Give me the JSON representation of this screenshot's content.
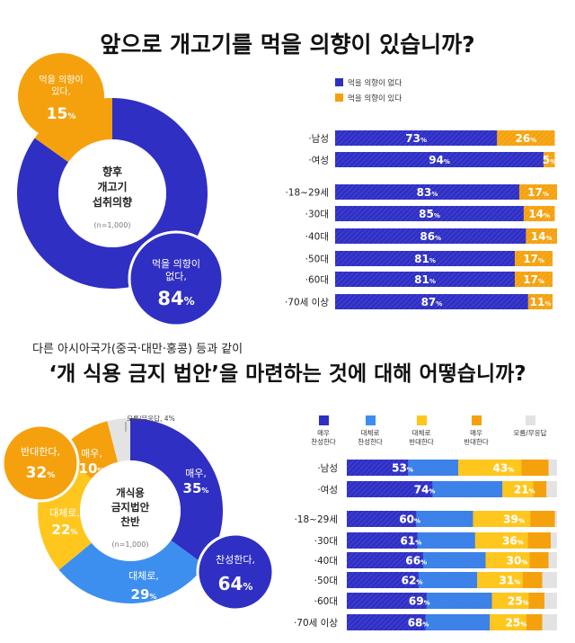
{
  "section1": {
    "title": "앞으로 개고기를 먹을 의향이 있습니까?",
    "donut": {
      "center_lines": [
        "향후",
        "개고기",
        "섭취의향"
      ],
      "center_note": "(n=1,000)",
      "callout_yes": {
        "lines": [
          "먹을 의향이",
          "있다,"
        ],
        "pct": "15%"
      },
      "callout_no": {
        "lines": [
          "먹을 의향이",
          "없다,"
        ],
        "pct": "84%"
      }
    },
    "legend": [
      "먹을 의향이 없다",
      "먹을 의향이 있다"
    ]
  },
  "section2": {
    "subtitle": "다른 아시아국가(중국·대만·홍콩) 등과 같이",
    "title": "‘개 식용 금지 법안’을 마련하는 것에 대해 어떻습니까?",
    "donut": {
      "center_lines": [
        "개식용",
        "금지법안",
        "찬반"
      ],
      "center_note": "(n=1,000)",
      "seg_labels": [
        {
          "lines": [
            "매우,"
          ],
          "pct": "35%"
        },
        {
          "lines": [
            "대체로,"
          ],
          "pct": "29%"
        },
        {
          "lines": [
            "대체로,"
          ],
          "pct": "22%"
        },
        {
          "lines": [
            "매우,"
          ],
          "pct": "10%"
        }
      ],
      "callout_approve": {
        "lines": [
          "찬성한다,"
        ],
        "pct": "64%"
      },
      "callout_oppose": {
        "lines": [
          "반대한다,"
        ],
        "pct": "32%"
      },
      "dk_note": "모름/무응답, 4%"
    },
    "legend": [
      [
        "매우",
        "찬성한다"
      ],
      [
        "대체로",
        "찬성한다"
      ],
      [
        "대체로",
        "반대한다"
      ],
      [
        "매우",
        "반대한다"
      ],
      [
        "모름/무응답"
      ]
    ]
  },
  "colors": {
    "dark_blue": "#2f2fc4",
    "blue": "#3d8fef",
    "yellow": "#ffc61e",
    "orange": "#f5a10d",
    "gray": "#e3e3e3"
  },
  "chart_data": [
    {
      "type": "pie",
      "categories": [
        "먹을 의향이 없다",
        "먹을 의향이 있다"
      ],
      "values": [
        84,
        15
      ]
    },
    {
      "type": "bar",
      "stacked": true,
      "orientation": "horizontal",
      "categories": [
        "남성",
        "여성",
        "18~29세",
        "30대",
        "40대",
        "50대",
        "60대",
        "70세 이상"
      ],
      "series": [
        {
          "name": "먹을 의향이 없다",
          "values": [
            73,
            94,
            83,
            85,
            86,
            81,
            81,
            87
          ]
        },
        {
          "name": "먹을 의향이 있다",
          "values": [
            26,
            5,
            17,
            14,
            14,
            17,
            17,
            11
          ]
        }
      ],
      "legend": "top"
    },
    {
      "type": "pie",
      "categories": [
        "매우 찬성한다",
        "대체로 찬성한다",
        "대체로 반대한다",
        "매우 반대한다",
        "모름/무응답"
      ],
      "values": [
        35,
        29,
        22,
        10,
        4
      ]
    },
    {
      "type": "bar",
      "stacked": true,
      "orientation": "horizontal",
      "categories": [
        "남성",
        "여성",
        "18~29세",
        "30대",
        "40대",
        "50대",
        "60대",
        "70세 이상"
      ],
      "series": [
        {
          "name": "매우 찬성한다 + 대체로 찬성한다",
          "values": [
            53,
            74,
            60,
            61,
            66,
            62,
            69,
            68
          ]
        },
        {
          "name": "대체로 반대한다 + 매우 반대한다",
          "values": [
            43,
            21,
            39,
            36,
            30,
            31,
            25,
            25
          ]
        }
      ],
      "legend": "top"
    }
  ]
}
